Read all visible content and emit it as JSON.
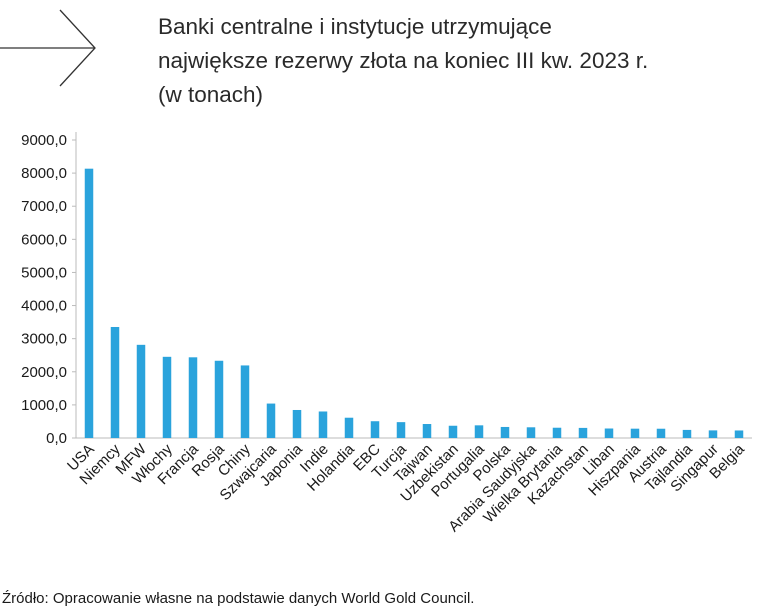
{
  "title_lines": [
    "Banki centralne i instytucje utrzymujące",
    "największe rezerwy złota na koniec III kw. 2023 r.",
    "(w tonach)"
  ],
  "source": "Źródło: Opracowanie własne na podstawie danych World Gold Council.",
  "colors": {
    "bar": "#2aa3dc",
    "axis": "#bbbbbb"
  },
  "chart_data": {
    "type": "bar",
    "title": "Banki centralne i instytucje utrzymujące największe rezerwy złota na koniec III kw. 2023 r. (w tonach)",
    "categories": [
      "USA",
      "Niemcy",
      "MFW",
      "Włochy",
      "Francja",
      "Rosja",
      "Chiny",
      "Szwajcaria",
      "Japonia",
      "Indie",
      "Holandia",
      "EBC",
      "Turcja",
      "Tajwan",
      "Uzbekistan",
      "Portugalia",
      "Polska",
      "Arabia Saudyjska",
      "Wielka Brytania",
      "Kazachstan",
      "Liban",
      "Hiszpania",
      "Austria",
      "Tajlandia",
      "Singapur",
      "Belgia"
    ],
    "values": [
      8133.5,
      3352.6,
      2814.0,
      2451.8,
      2436.9,
      2332.7,
      2191.6,
      1040.0,
      846.0,
      800.8,
      612.5,
      506.5,
      479.0,
      422.4,
      370.0,
      382.6,
      333.4,
      323.1,
      310.3,
      305.0,
      286.8,
      281.6,
      280.0,
      244.2,
      230.0,
      227.4
    ],
    "yticks": [
      "9000,0",
      "8000,0",
      "7000,0",
      "6000,0",
      "5000,0",
      "4000,0",
      "3000,0",
      "2000,0",
      "1000,0",
      "0,0"
    ],
    "ylim": [
      0,
      9000
    ],
    "xlabel": "",
    "ylabel": "",
    "grid": false,
    "legend": "none"
  }
}
